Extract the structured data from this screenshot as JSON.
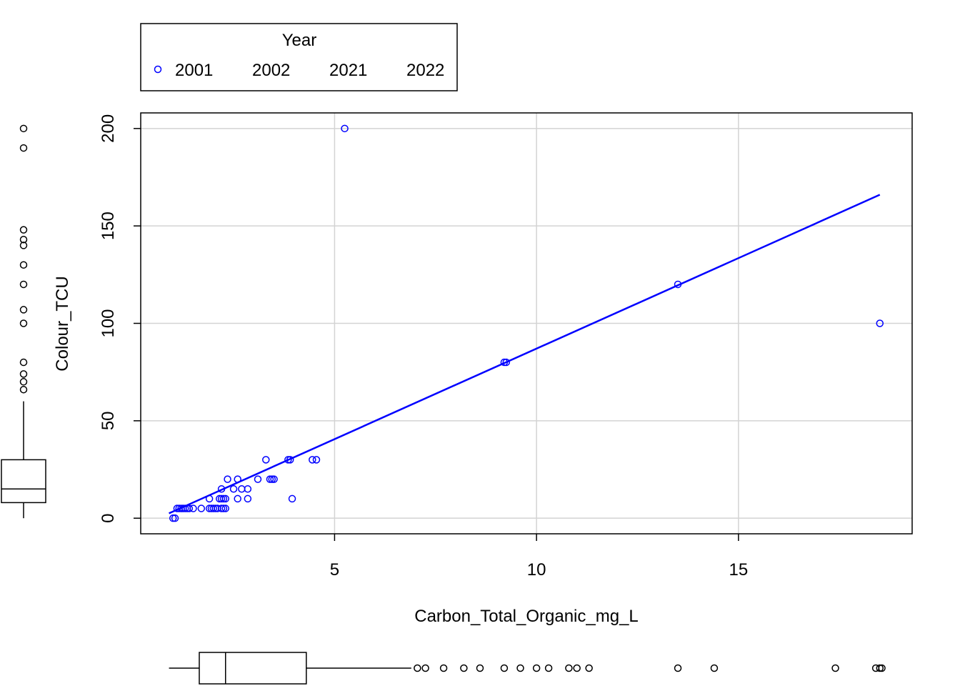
{
  "chart_data": {
    "type": "scatter",
    "xlabel": "Carbon_Total_Organic_mg_L",
    "ylabel": "Colour_TCU",
    "xlim": [
      0.2,
      19.3
    ],
    "ylim": [
      -8,
      208
    ],
    "x_ticks": [
      5,
      10,
      15
    ],
    "y_ticks": [
      0,
      50,
      100,
      150,
      200
    ],
    "grid": true,
    "legend": {
      "title": "Year",
      "placement": "top",
      "entries": [
        "2001",
        "2002",
        "2021",
        "2022"
      ]
    },
    "colors": {
      "series": "#0000ff",
      "grid": "#d3d3d3",
      "axis": "#000000"
    },
    "series": [
      {
        "name": "2001",
        "points": [
          [
            1.0,
            0
          ],
          [
            1.05,
            0
          ],
          [
            1.1,
            5
          ],
          [
            1.15,
            5
          ],
          [
            1.2,
            5
          ],
          [
            1.25,
            5
          ],
          [
            1.3,
            5
          ],
          [
            1.35,
            5
          ],
          [
            1.4,
            5
          ],
          [
            1.5,
            5
          ],
          [
            1.7,
            5
          ],
          [
            1.9,
            5
          ],
          [
            1.95,
            5
          ],
          [
            2.0,
            5
          ],
          [
            2.05,
            5
          ],
          [
            2.1,
            5
          ],
          [
            2.2,
            5
          ],
          [
            2.25,
            5
          ],
          [
            2.3,
            5
          ],
          [
            1.9,
            10
          ],
          [
            2.15,
            10
          ],
          [
            2.2,
            10
          ],
          [
            2.25,
            10
          ],
          [
            2.3,
            10
          ],
          [
            2.6,
            10
          ],
          [
            2.85,
            10
          ],
          [
            3.95,
            10
          ],
          [
            2.2,
            15
          ],
          [
            2.5,
            15
          ],
          [
            2.7,
            15
          ],
          [
            2.85,
            15
          ],
          [
            2.35,
            20
          ],
          [
            2.6,
            20
          ],
          [
            3.1,
            20
          ],
          [
            3.4,
            20
          ],
          [
            3.45,
            20
          ],
          [
            3.5,
            20
          ],
          [
            3.3,
            30
          ],
          [
            3.85,
            30
          ],
          [
            3.9,
            30
          ],
          [
            4.45,
            30
          ],
          [
            4.55,
            30
          ],
          [
            5.25,
            200
          ],
          [
            9.2,
            80
          ],
          [
            9.25,
            80
          ],
          [
            13.5,
            120
          ],
          [
            18.5,
            100
          ]
        ]
      }
    ],
    "trend_line": {
      "x": [
        0.9,
        18.5
      ],
      "y": [
        2.5,
        166
      ]
    },
    "x_marginal_boxplot": {
      "q1": 1.65,
      "median": 2.3,
      "q3": 4.3,
      "whisker_low": 0.9,
      "whisker_high": 6.9,
      "outliers": [
        7.05,
        7.25,
        7.7,
        8.2,
        8.6,
        9.2,
        9.6,
        10.0,
        10.3,
        10.8,
        11.0,
        11.3,
        13.5,
        14.4,
        17.4,
        18.4,
        18.5,
        18.55
      ]
    },
    "y_marginal_boxplot": {
      "q1": 8,
      "median": 15,
      "q3": 30,
      "whisker_low": 0,
      "whisker_high": 60,
      "outliers": [
        66,
        70,
        74,
        80,
        100,
        107,
        120,
        130,
        140,
        143,
        148,
        190,
        200
      ]
    }
  }
}
